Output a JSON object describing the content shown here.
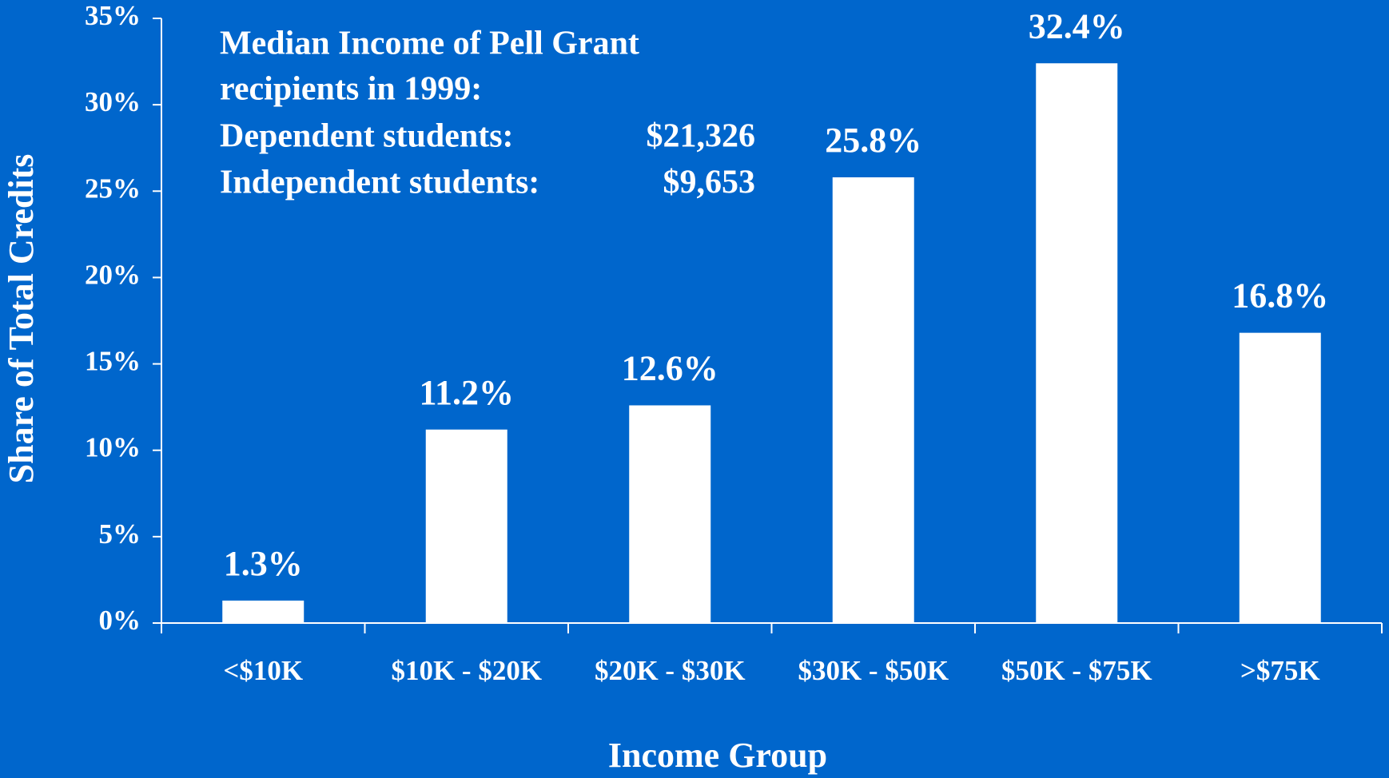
{
  "chart_data": {
    "type": "bar",
    "x_label": "Income Group",
    "y_label": "Share of Total Credits",
    "categories": [
      "<$10K",
      "$10K - $20K",
      "$20K - $30K",
      "$30K - $50K",
      "$50K - $75K",
      ">$75K"
    ],
    "values": [
      1.3,
      11.2,
      12.6,
      25.8,
      32.4,
      16.8
    ],
    "value_labels": [
      "1.3%",
      "11.2%",
      "12.6%",
      "25.8%",
      "32.4%",
      "16.8%"
    ],
    "color": "#ffffff",
    "ylim": [
      0,
      35
    ],
    "yticks": [
      {
        "value": 0,
        "label": "0%"
      },
      {
        "value": 5,
        "label": "5%"
      },
      {
        "value": 10,
        "label": "10%"
      },
      {
        "value": 15,
        "label": "15%"
      },
      {
        "value": 20,
        "label": "20%"
      },
      {
        "value": 25,
        "label": "25%"
      },
      {
        "value": 30,
        "label": "30%"
      },
      {
        "value": 35,
        "label": "35%"
      }
    ],
    "grid": false,
    "annotation": {
      "lines": [
        "Median Income of Pell Grant",
        "recipients in 1999:"
      ],
      "rows": [
        {
          "label": "Dependent students:",
          "value": "$21,326"
        },
        {
          "label": "Independent students:",
          "value": "$9,653"
        }
      ]
    }
  }
}
